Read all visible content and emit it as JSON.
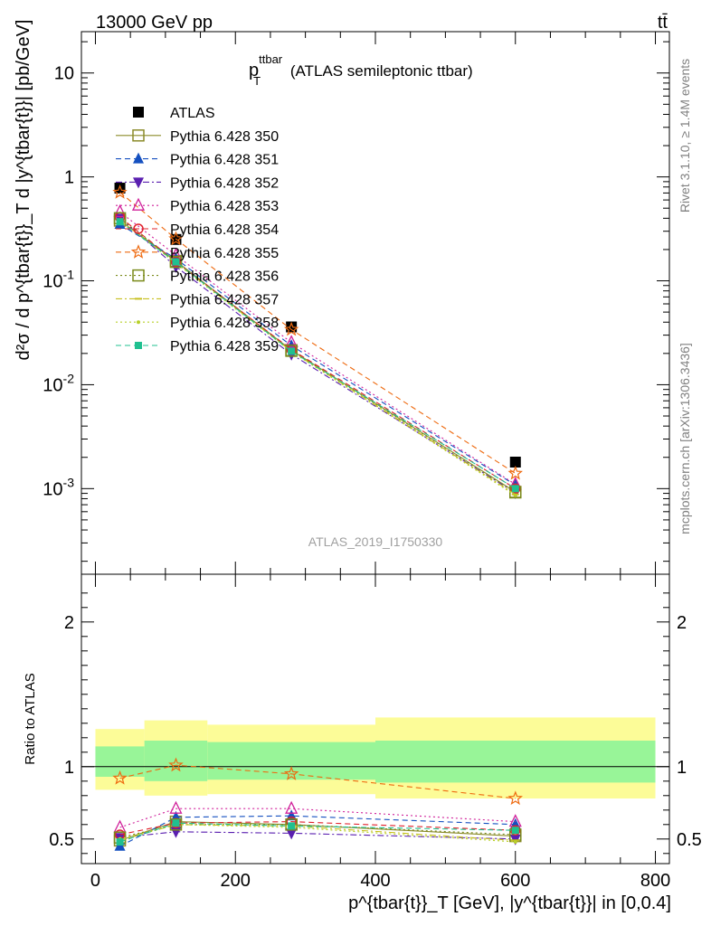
{
  "header": {
    "left": "13000 GeV pp",
    "right": "tt̄"
  },
  "side_labels": {
    "rivet": "Rivet 3.1.10, ≥ 1.4M events",
    "mcplots": "mcplots.cern.ch [arXiv:1306.3436]"
  },
  "colors": {
    "ATLAS": "#000000",
    "350": "#8b8b2a",
    "351": "#1550c0",
    "352": "#5a1fb0",
    "353": "#d0209a",
    "354": "#e0202a",
    "355": "#ee6a10",
    "356": "#7a8a1a",
    "357": "#c8c020",
    "358": "#b8d028",
    "359": "#20c090",
    "band_inner": "#98f598",
    "band_outer": "#fcfc98"
  },
  "chart_data": [
    {
      "type": "scatter",
      "panel": "main",
      "title_main": "p",
      "title_sup": "ttbar",
      "title_sub": "T",
      "title_rest": " (ATLAS semileptonic ttbar)",
      "watermark": "ATLAS_2019_I1750330",
      "ylabel": "d²σ / d p^{tbar{t}}_T d |y^{tbar{t}}| [pb/GeV]",
      "yscale": "log",
      "ylim": [
        0.00015,
        25
      ],
      "xlim": [
        -20,
        820
      ],
      "y_ticks": [
        "10",
        "1",
        "10^-1",
        "10^-2",
        "10^-3"
      ],
      "x": [
        35,
        115,
        280,
        600
      ],
      "series": [
        {
          "name": "ATLAS",
          "marker": "filled-square",
          "dash": "none",
          "values": [
            0.78,
            0.25,
            0.036,
            0.0018
          ]
        },
        {
          "name": "Pythia 6.428 350",
          "marker": "open-square",
          "dash": "solid",
          "values": [
            0.38,
            0.155,
            0.0215,
            0.00093
          ]
        },
        {
          "name": "Pythia 6.428 351",
          "marker": "filled-triangle-up",
          "dash": "dashed",
          "values": [
            0.35,
            0.163,
            0.0238,
            0.00108
          ]
        },
        {
          "name": "Pythia 6.428 352",
          "marker": "filled-triangle-down",
          "dash": "dashdot",
          "values": [
            0.4,
            0.137,
            0.0196,
            0.00091
          ]
        },
        {
          "name": "Pythia 6.428 353",
          "marker": "open-triangle-up",
          "dash": "dotted",
          "values": [
            0.46,
            0.176,
            0.0255,
            0.0011
          ]
        },
        {
          "name": "Pythia 6.428 354",
          "marker": "open-circle",
          "dash": "dashed",
          "values": [
            0.41,
            0.153,
            0.0218,
            0.001
          ]
        },
        {
          "name": "Pythia 6.428 355",
          "marker": "open-star",
          "dash": "dashed",
          "values": [
            0.71,
            0.253,
            0.034,
            0.0014
          ]
        },
        {
          "name": "Pythia 6.428 356",
          "marker": "open-square",
          "dash": "dotted",
          "values": [
            0.4,
            0.152,
            0.0212,
            0.00092
          ]
        },
        {
          "name": "Pythia 6.428 357",
          "marker": "small-dash",
          "dash": "dashdot",
          "values": [
            0.38,
            0.15,
            0.021,
            0.00088
          ]
        },
        {
          "name": "Pythia 6.428 358",
          "marker": "small-dot",
          "dash": "dotted",
          "values": [
            0.38,
            0.148,
            0.0208,
            0.00086
          ]
        },
        {
          "name": "Pythia 6.428 359",
          "marker": "filled-square-small",
          "dash": "dashed",
          "values": [
            0.37,
            0.152,
            0.021,
            0.001
          ]
        }
      ]
    },
    {
      "type": "line",
      "panel": "ratio",
      "ylabel": "Ratio to ATLAS",
      "xlabel": "p^{tbar{t}}_T [GeV], |y^{tbar{t}}| in [0,0.4]",
      "ylim": [
        0.33,
        2.33
      ],
      "xlim": [
        -20,
        820
      ],
      "x_ticks": [
        "0",
        "200",
        "400",
        "600",
        "800"
      ],
      "y_ticks": [
        "0.5",
        "1",
        "2"
      ],
      "bands": {
        "edges": [
          0,
          70,
          160,
          400,
          800
        ],
        "outer": [
          [
            0.84,
            1.26
          ],
          [
            0.8,
            1.32
          ],
          [
            0.81,
            1.29
          ],
          [
            0.78,
            1.34
          ]
        ],
        "inner": [
          [
            0.93,
            1.14
          ],
          [
            0.9,
            1.18
          ],
          [
            0.91,
            1.17
          ],
          [
            0.89,
            1.18
          ]
        ]
      },
      "x": [
        35,
        115,
        280,
        600
      ],
      "series": [
        {
          "name": "Pythia 6.428 350",
          "values": [
            0.49,
            0.62,
            0.6,
            0.52
          ]
        },
        {
          "name": "Pythia 6.428 351",
          "values": [
            0.45,
            0.65,
            0.66,
            0.6
          ]
        },
        {
          "name": "Pythia 6.428 352",
          "values": [
            0.51,
            0.55,
            0.54,
            0.5
          ]
        },
        {
          "name": "Pythia 6.428 353",
          "values": [
            0.58,
            0.71,
            0.71,
            0.62
          ]
        },
        {
          "name": "Pythia 6.428 354",
          "values": [
            0.53,
            0.61,
            0.62,
            0.56
          ]
        },
        {
          "name": "Pythia 6.428 355",
          "values": [
            0.92,
            1.01,
            0.95,
            0.78
          ]
        },
        {
          "name": "Pythia 6.428 356",
          "values": [
            0.51,
            0.6,
            0.6,
            0.53
          ]
        },
        {
          "name": "Pythia 6.428 357",
          "values": [
            0.49,
            0.6,
            0.59,
            0.49
          ]
        },
        {
          "name": "Pythia 6.428 358",
          "values": [
            0.5,
            0.6,
            0.58,
            0.48
          ]
        },
        {
          "name": "Pythia 6.428 359",
          "values": [
            0.48,
            0.61,
            0.59,
            0.56
          ]
        }
      ]
    }
  ]
}
